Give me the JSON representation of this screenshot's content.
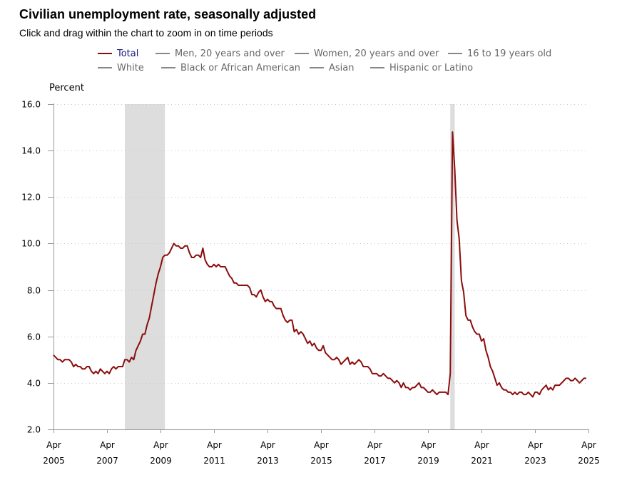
{
  "header": {
    "title": "Civilian unemployment rate, seasonally adjusted",
    "subtitle": "Click and drag within the chart to zoom in on time periods"
  },
  "legend": [
    {
      "label": "Total",
      "color": "#8b0d0d",
      "active": true
    },
    {
      "label": "Men, 20 years and over",
      "color": "#888888",
      "active": false
    },
    {
      "label": "Women, 20 years and over",
      "color": "#888888",
      "active": false
    },
    {
      "label": "16 to 19 years old",
      "color": "#888888",
      "active": false
    },
    {
      "label": "White",
      "color": "#888888",
      "active": false
    },
    {
      "label": "Black or African American",
      "color": "#888888",
      "active": false
    },
    {
      "label": "Asian",
      "color": "#888888",
      "active": false
    },
    {
      "label": "Hispanic or Latino",
      "color": "#888888",
      "active": false
    }
  ],
  "chart_data": {
    "type": "line",
    "title": "Civilian unemployment rate, seasonally adjusted",
    "ylabel": "Percent",
    "xlabel": "",
    "ylim": [
      2.0,
      16.0
    ],
    "yticks": [
      "2.0",
      "4.0",
      "6.0",
      "8.0",
      "10.0",
      "12.0",
      "14.0",
      "16.0"
    ],
    "xlim": [
      "2005-04",
      "2025-04"
    ],
    "xticks": [
      {
        "month": "Apr",
        "year": "2005"
      },
      {
        "month": "Apr",
        "year": "2007"
      },
      {
        "month": "Apr",
        "year": "2009"
      },
      {
        "month": "Apr",
        "year": "2011"
      },
      {
        "month": "Apr",
        "year": "2013"
      },
      {
        "month": "Apr",
        "year": "2015"
      },
      {
        "month": "Apr",
        "year": "2017"
      },
      {
        "month": "Apr",
        "year": "2019"
      },
      {
        "month": "Apr",
        "year": "2021"
      },
      {
        "month": "Apr",
        "year": "2023"
      },
      {
        "month": "Apr",
        "year": "2025"
      }
    ],
    "grid": "horizontal dotted",
    "recessions": [
      {
        "start": "2007-12",
        "end": "2009-06",
        "color": "#dddddd"
      },
      {
        "start": "2020-02",
        "end": "2020-04",
        "color": "#dddddd"
      }
    ],
    "series": [
      {
        "name": "Total",
        "color": "#8b0d0d",
        "start": "2005-04",
        "values": [
          5.2,
          5.1,
          5.0,
          5.0,
          4.9,
          5.0,
          5.0,
          5.0,
          4.9,
          4.7,
          4.8,
          4.7,
          4.7,
          4.6,
          4.6,
          4.7,
          4.7,
          4.5,
          4.4,
          4.5,
          4.4,
          4.6,
          4.5,
          4.4,
          4.5,
          4.4,
          4.6,
          4.7,
          4.6,
          4.7,
          4.7,
          4.7,
          5.0,
          5.0,
          4.9,
          5.1,
          5.0,
          5.4,
          5.6,
          5.8,
          6.1,
          6.1,
          6.5,
          6.8,
          7.3,
          7.8,
          8.3,
          8.7,
          9.0,
          9.4,
          9.5,
          9.5,
          9.6,
          9.8,
          10.0,
          9.9,
          9.9,
          9.8,
          9.8,
          9.9,
          9.9,
          9.6,
          9.4,
          9.4,
          9.5,
          9.5,
          9.4,
          9.8,
          9.3,
          9.1,
          9.0,
          9.0,
          9.1,
          9.0,
          9.1,
          9.0,
          9.0,
          9.0,
          8.8,
          8.6,
          8.5,
          8.3,
          8.3,
          8.2,
          8.2,
          8.2,
          8.2,
          8.2,
          8.1,
          7.8,
          7.8,
          7.7,
          7.9,
          8.0,
          7.7,
          7.5,
          7.6,
          7.5,
          7.5,
          7.3,
          7.2,
          7.2,
          7.2,
          6.9,
          6.7,
          6.6,
          6.7,
          6.7,
          6.2,
          6.3,
          6.1,
          6.2,
          6.1,
          5.9,
          5.7,
          5.8,
          5.6,
          5.7,
          5.5,
          5.4,
          5.4,
          5.6,
          5.3,
          5.2,
          5.1,
          5.0,
          5.0,
          5.1,
          5.0,
          4.8,
          4.9,
          5.0,
          5.1,
          4.8,
          4.9,
          4.8,
          4.9,
          5.0,
          4.9,
          4.7,
          4.7,
          4.7,
          4.6,
          4.4,
          4.4,
          4.4,
          4.3,
          4.3,
          4.4,
          4.3,
          4.2,
          4.2,
          4.1,
          4.0,
          4.1,
          4.0,
          3.8,
          4.0,
          3.8,
          3.8,
          3.7,
          3.8,
          3.8,
          3.9,
          4.0,
          3.8,
          3.8,
          3.7,
          3.6,
          3.6,
          3.7,
          3.6,
          3.5,
          3.6,
          3.6,
          3.6,
          3.6,
          3.5,
          4.4,
          14.8,
          13.2,
          11.0,
          10.2,
          8.4,
          7.9,
          6.9,
          6.7,
          6.7,
          6.4,
          6.2,
          6.1,
          6.1,
          5.8,
          5.9,
          5.4,
          5.1,
          4.7,
          4.5,
          4.2,
          3.9,
          4.0,
          3.8,
          3.7,
          3.7,
          3.6,
          3.6,
          3.5,
          3.6,
          3.5,
          3.6,
          3.6,
          3.5,
          3.5,
          3.6,
          3.5,
          3.4,
          3.6,
          3.6,
          3.5,
          3.7,
          3.8,
          3.9,
          3.7,
          3.8,
          3.7,
          3.9,
          3.9,
          3.9,
          4.0,
          4.1,
          4.2,
          4.2,
          4.1,
          4.1,
          4.2,
          4.1,
          4.0,
          4.1,
          4.2,
          4.2
        ]
      }
    ]
  }
}
